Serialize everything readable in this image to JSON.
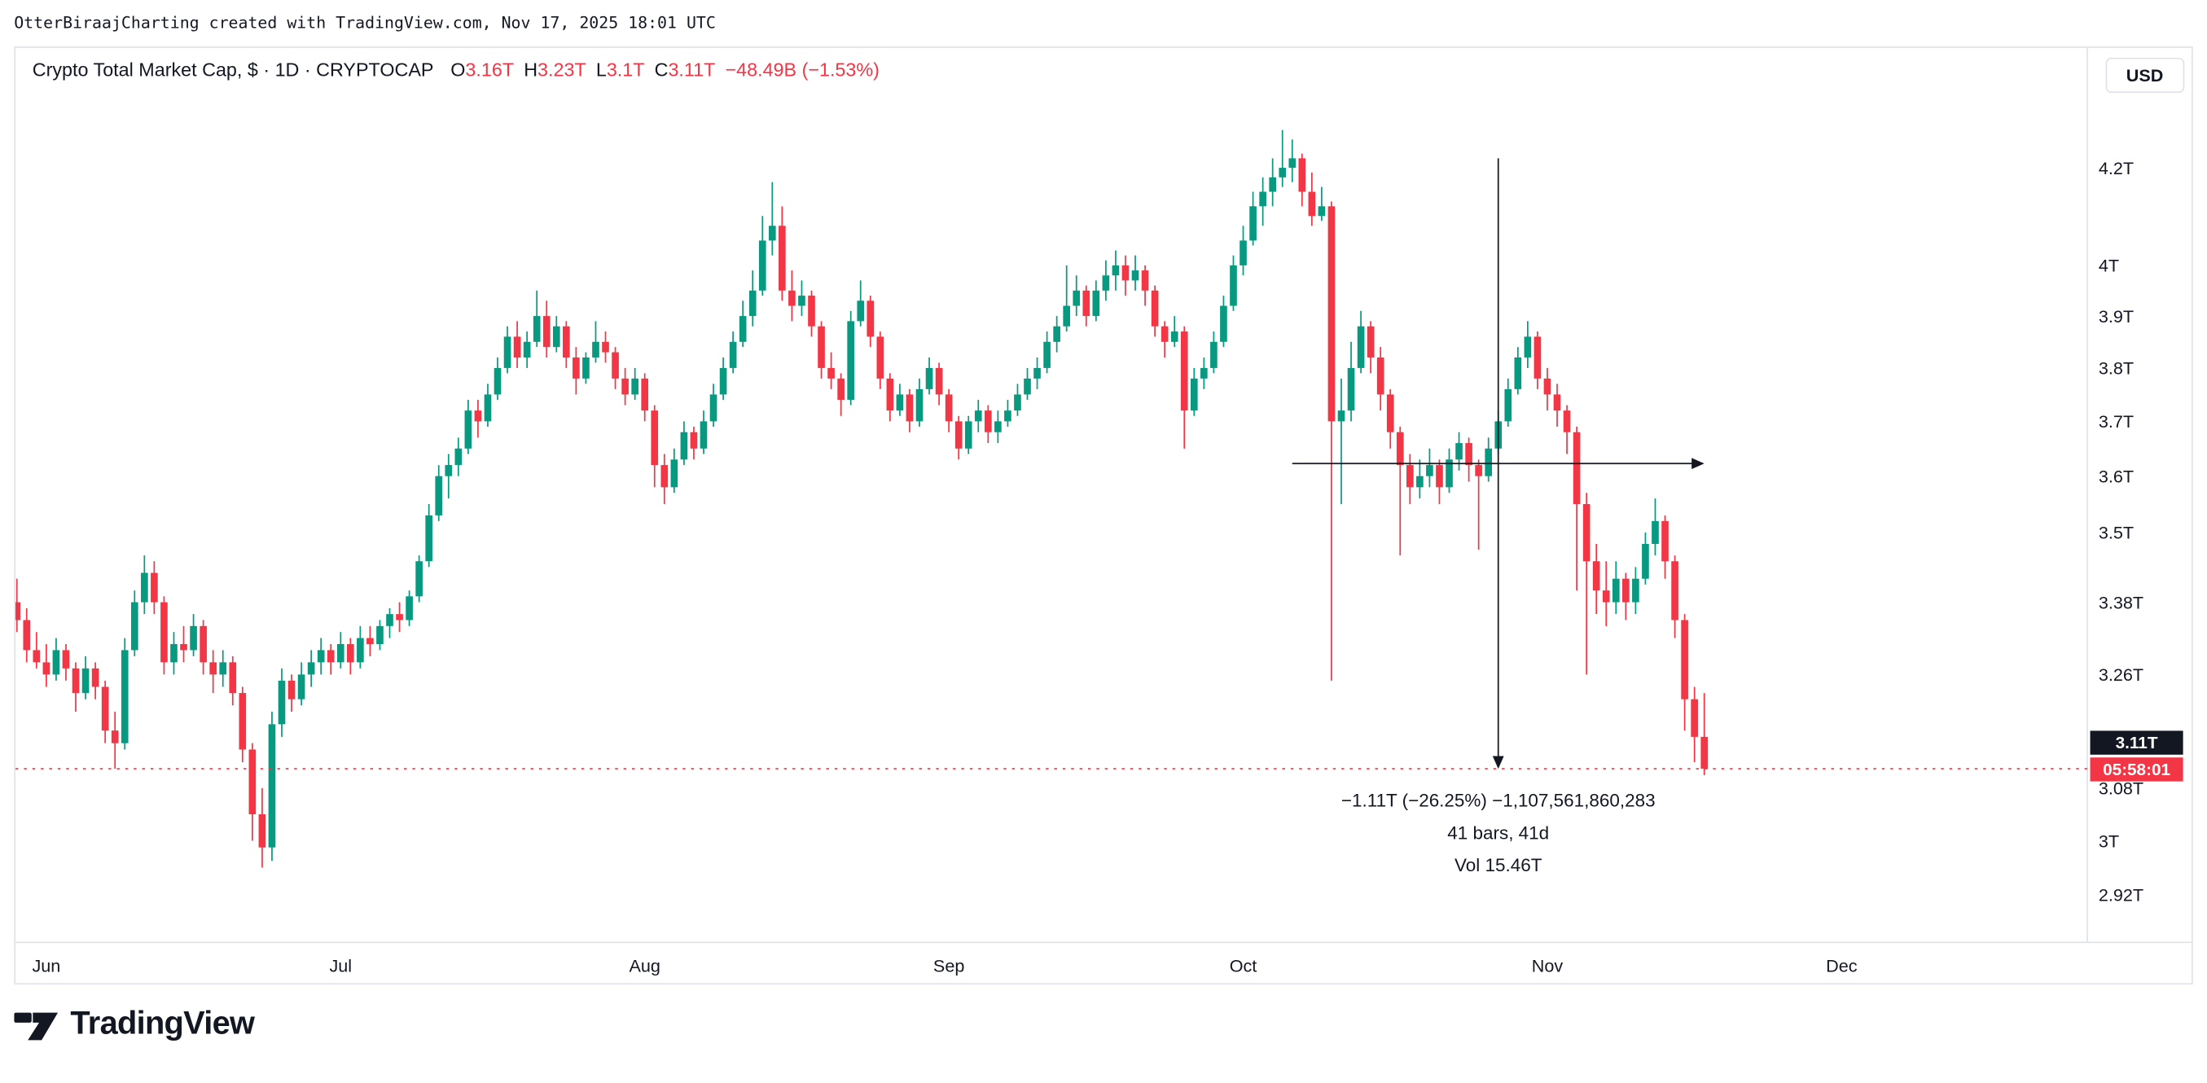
{
  "attribution": "OtterBiraajCharting created with TradingView.com, Nov 17, 2025 18:01 UTC",
  "header": {
    "title": "Crypto Total Market Cap, $ · 1D · CRYPTOCAP",
    "ohlc": [
      {
        "label": "O",
        "value": "3.16T"
      },
      {
        "label": "H",
        "value": "3.23T"
      },
      {
        "label": "L",
        "value": "3.1T"
      },
      {
        "label": "C",
        "value": "3.11T"
      }
    ],
    "change": "−48.49B (−1.53%)"
  },
  "currency_button": "USD",
  "logo_text": "TradingView",
  "colors": {
    "up": "#089981",
    "down": "#f23645",
    "text": "#131722",
    "red_text": "#f23645",
    "border": "#e0e3eb",
    "badge_bg": "#131722",
    "countdown_bg": "#f23645",
    "white": "#ffffff"
  },
  "chart_data": {
    "type": "candlestick",
    "title": "Crypto Total Market Cap, $ · 1D · CRYPTOCAP",
    "unit": "trillion USD",
    "interval": "1D",
    "start_date": "2025-05-29",
    "end_date": "2025-11-17",
    "last_price": 3.11,
    "last_price_label": "3.11T",
    "countdown": "05:58:01",
    "y_axis": {
      "scale": "log",
      "range_approx": [
        2.9,
        4.35
      ],
      "ticks": [
        {
          "label": "4.2T",
          "value": 4.2
        },
        {
          "label": "4T",
          "value": 4.0
        },
        {
          "label": "3.9T",
          "value": 3.9
        },
        {
          "label": "3.8T",
          "value": 3.8
        },
        {
          "label": "3.7T",
          "value": 3.7
        },
        {
          "label": "3.6T",
          "value": 3.6
        },
        {
          "label": "3.5T",
          "value": 3.5
        },
        {
          "label": "3.38T",
          "value": 3.38
        },
        {
          "label": "3.26T",
          "value": 3.26
        },
        {
          "label": "3.08T",
          "value": 3.08
        },
        {
          "label": "3T",
          "value": 3.0
        },
        {
          "label": "2.92T",
          "value": 2.92
        }
      ]
    },
    "x_axis": {
      "ticks": [
        {
          "label": "Jun",
          "bar": 3
        },
        {
          "label": "Jul",
          "bar": 33
        },
        {
          "label": "Aug",
          "bar": 64
        },
        {
          "label": "Sep",
          "bar": 95
        },
        {
          "label": "Oct",
          "bar": 125
        },
        {
          "label": "Nov",
          "bar": 156
        },
        {
          "label": "Dec",
          "bar": 186
        }
      ]
    },
    "measurement": {
      "from_bar": 130,
      "from_price": 4.22,
      "to_bar": 172,
      "to_price": 3.11,
      "lines": [
        "−1.11T (−26.25%) −1,107,561,860,283",
        "41 bars, 41d",
        "Vol 15.46T"
      ]
    },
    "ohlc": [
      [
        3.38,
        3.42,
        3.33,
        3.35
      ],
      [
        3.35,
        3.37,
        3.28,
        3.3
      ],
      [
        3.3,
        3.33,
        3.27,
        3.28
      ],
      [
        3.28,
        3.31,
        3.24,
        3.26
      ],
      [
        3.26,
        3.32,
        3.25,
        3.3
      ],
      [
        3.3,
        3.31,
        3.25,
        3.27
      ],
      [
        3.27,
        3.28,
        3.2,
        3.23
      ],
      [
        3.23,
        3.29,
        3.22,
        3.27
      ],
      [
        3.27,
        3.28,
        3.22,
        3.24
      ],
      [
        3.24,
        3.25,
        3.15,
        3.17
      ],
      [
        3.17,
        3.2,
        3.11,
        3.15
      ],
      [
        3.15,
        3.32,
        3.14,
        3.3
      ],
      [
        3.3,
        3.4,
        3.29,
        3.38
      ],
      [
        3.38,
        3.46,
        3.36,
        3.43
      ],
      [
        3.43,
        3.45,
        3.36,
        3.38
      ],
      [
        3.38,
        3.39,
        3.26,
        3.28
      ],
      [
        3.28,
        3.33,
        3.26,
        3.31
      ],
      [
        3.31,
        3.34,
        3.28,
        3.3
      ],
      [
        3.3,
        3.36,
        3.29,
        3.34
      ],
      [
        3.34,
        3.35,
        3.26,
        3.28
      ],
      [
        3.28,
        3.3,
        3.23,
        3.26
      ],
      [
        3.26,
        3.3,
        3.24,
        3.28
      ],
      [
        3.28,
        3.29,
        3.21,
        3.23
      ],
      [
        3.23,
        3.24,
        3.12,
        3.14
      ],
      [
        3.14,
        3.15,
        3.0,
        3.04
      ],
      [
        3.04,
        3.08,
        2.96,
        2.99
      ],
      [
        2.99,
        3.2,
        2.97,
        3.18
      ],
      [
        3.18,
        3.27,
        3.16,
        3.25
      ],
      [
        3.25,
        3.26,
        3.2,
        3.22
      ],
      [
        3.22,
        3.28,
        3.21,
        3.26
      ],
      [
        3.26,
        3.3,
        3.24,
        3.28
      ],
      [
        3.28,
        3.32,
        3.26,
        3.3
      ],
      [
        3.3,
        3.31,
        3.26,
        3.28
      ],
      [
        3.28,
        3.33,
        3.27,
        3.31
      ],
      [
        3.31,
        3.32,
        3.26,
        3.28
      ],
      [
        3.28,
        3.34,
        3.27,
        3.32
      ],
      [
        3.32,
        3.34,
        3.29,
        3.31
      ],
      [
        3.31,
        3.35,
        3.3,
        3.34
      ],
      [
        3.34,
        3.37,
        3.32,
        3.36
      ],
      [
        3.36,
        3.38,
        3.33,
        3.35
      ],
      [
        3.35,
        3.4,
        3.34,
        3.39
      ],
      [
        3.39,
        3.46,
        3.38,
        3.45
      ],
      [
        3.45,
        3.55,
        3.44,
        3.53
      ],
      [
        3.53,
        3.62,
        3.52,
        3.6
      ],
      [
        3.6,
        3.64,
        3.56,
        3.62
      ],
      [
        3.62,
        3.67,
        3.6,
        3.65
      ],
      [
        3.65,
        3.74,
        3.64,
        3.72
      ],
      [
        3.72,
        3.74,
        3.67,
        3.7
      ],
      [
        3.7,
        3.77,
        3.69,
        3.75
      ],
      [
        3.75,
        3.82,
        3.74,
        3.8
      ],
      [
        3.8,
        3.88,
        3.79,
        3.86
      ],
      [
        3.86,
        3.89,
        3.8,
        3.82
      ],
      [
        3.82,
        3.87,
        3.8,
        3.85
      ],
      [
        3.85,
        3.95,
        3.84,
        3.9
      ],
      [
        3.9,
        3.93,
        3.82,
        3.84
      ],
      [
        3.84,
        3.9,
        3.83,
        3.88
      ],
      [
        3.88,
        3.89,
        3.8,
        3.82
      ],
      [
        3.82,
        3.84,
        3.75,
        3.78
      ],
      [
        3.78,
        3.83,
        3.77,
        3.82
      ],
      [
        3.82,
        3.89,
        3.81,
        3.85
      ],
      [
        3.85,
        3.87,
        3.81,
        3.83
      ],
      [
        3.83,
        3.84,
        3.76,
        3.78
      ],
      [
        3.78,
        3.8,
        3.73,
        3.75
      ],
      [
        3.75,
        3.8,
        3.74,
        3.78
      ],
      [
        3.78,
        3.79,
        3.7,
        3.72
      ],
      [
        3.72,
        3.73,
        3.58,
        3.62
      ],
      [
        3.62,
        3.64,
        3.55,
        3.58
      ],
      [
        3.58,
        3.65,
        3.57,
        3.63
      ],
      [
        3.63,
        3.7,
        3.62,
        3.68
      ],
      [
        3.68,
        3.69,
        3.63,
        3.65
      ],
      [
        3.65,
        3.72,
        3.64,
        3.7
      ],
      [
        3.7,
        3.77,
        3.69,
        3.75
      ],
      [
        3.75,
        3.82,
        3.74,
        3.8
      ],
      [
        3.8,
        3.87,
        3.79,
        3.85
      ],
      [
        3.85,
        3.93,
        3.84,
        3.9
      ],
      [
        3.9,
        3.99,
        3.88,
        3.95
      ],
      [
        3.95,
        4.1,
        3.94,
        4.05
      ],
      [
        4.05,
        4.17,
        4.02,
        4.08
      ],
      [
        4.08,
        4.12,
        3.93,
        3.95
      ],
      [
        3.95,
        3.99,
        3.89,
        3.92
      ],
      [
        3.92,
        3.97,
        3.9,
        3.94
      ],
      [
        3.94,
        3.95,
        3.86,
        3.88
      ],
      [
        3.88,
        3.89,
        3.78,
        3.8
      ],
      [
        3.8,
        3.83,
        3.76,
        3.78
      ],
      [
        3.78,
        3.79,
        3.71,
        3.74
      ],
      [
        3.74,
        3.91,
        3.73,
        3.89
      ],
      [
        3.89,
        3.97,
        3.88,
        3.93
      ],
      [
        3.93,
        3.94,
        3.84,
        3.86
      ],
      [
        3.86,
        3.87,
        3.76,
        3.78
      ],
      [
        3.78,
        3.79,
        3.7,
        3.72
      ],
      [
        3.72,
        3.77,
        3.71,
        3.75
      ],
      [
        3.75,
        3.76,
        3.68,
        3.7
      ],
      [
        3.7,
        3.78,
        3.69,
        3.76
      ],
      [
        3.76,
        3.82,
        3.75,
        3.8
      ],
      [
        3.8,
        3.81,
        3.73,
        3.75
      ],
      [
        3.75,
        3.76,
        3.68,
        3.7
      ],
      [
        3.7,
        3.71,
        3.63,
        3.65
      ],
      [
        3.65,
        3.71,
        3.64,
        3.7
      ],
      [
        3.7,
        3.74,
        3.68,
        3.72
      ],
      [
        3.72,
        3.73,
        3.66,
        3.68
      ],
      [
        3.68,
        3.72,
        3.66,
        3.7
      ],
      [
        3.7,
        3.74,
        3.69,
        3.72
      ],
      [
        3.72,
        3.77,
        3.71,
        3.75
      ],
      [
        3.75,
        3.8,
        3.74,
        3.78
      ],
      [
        3.78,
        3.82,
        3.76,
        3.8
      ],
      [
        3.8,
        3.87,
        3.79,
        3.85
      ],
      [
        3.85,
        3.9,
        3.83,
        3.88
      ],
      [
        3.88,
        4.0,
        3.87,
        3.92
      ],
      [
        3.92,
        3.98,
        3.9,
        3.95
      ],
      [
        3.95,
        3.96,
        3.88,
        3.9
      ],
      [
        3.9,
        3.97,
        3.89,
        3.95
      ],
      [
        3.95,
        4.01,
        3.93,
        3.98
      ],
      [
        3.98,
        4.03,
        3.95,
        4.0
      ],
      [
        4.0,
        4.02,
        3.94,
        3.97
      ],
      [
        3.97,
        4.02,
        3.95,
        3.99
      ],
      [
        3.99,
        4.0,
        3.92,
        3.95
      ],
      [
        3.95,
        3.96,
        3.86,
        3.88
      ],
      [
        3.88,
        3.89,
        3.82,
        3.85
      ],
      [
        3.85,
        3.9,
        3.84,
        3.87
      ],
      [
        3.87,
        3.88,
        3.65,
        3.72
      ],
      [
        3.72,
        3.8,
        3.71,
        3.78
      ],
      [
        3.78,
        3.82,
        3.76,
        3.8
      ],
      [
        3.8,
        3.87,
        3.79,
        3.85
      ],
      [
        3.85,
        3.94,
        3.84,
        3.92
      ],
      [
        3.92,
        4.02,
        3.91,
        4.0
      ],
      [
        4.0,
        4.08,
        3.98,
        4.05
      ],
      [
        4.05,
        4.15,
        4.04,
        4.12
      ],
      [
        4.12,
        4.18,
        4.08,
        4.15
      ],
      [
        4.15,
        4.22,
        4.12,
        4.18
      ],
      [
        4.18,
        4.28,
        4.16,
        4.2
      ],
      [
        4.2,
        4.26,
        4.17,
        4.22
      ],
      [
        4.22,
        4.23,
        4.12,
        4.15
      ],
      [
        4.15,
        4.19,
        4.08,
        4.1
      ],
      [
        4.1,
        4.16,
        4.09,
        4.12
      ],
      [
        4.12,
        4.13,
        3.25,
        3.7
      ],
      [
        3.7,
        3.78,
        3.55,
        3.72
      ],
      [
        3.72,
        3.85,
        3.7,
        3.8
      ],
      [
        3.8,
        3.91,
        3.79,
        3.88
      ],
      [
        3.88,
        3.89,
        3.79,
        3.82
      ],
      [
        3.82,
        3.84,
        3.72,
        3.75
      ],
      [
        3.75,
        3.76,
        3.65,
        3.68
      ],
      [
        3.68,
        3.69,
        3.46,
        3.62
      ],
      [
        3.62,
        3.64,
        3.55,
        3.58
      ],
      [
        3.58,
        3.63,
        3.56,
        3.6
      ],
      [
        3.6,
        3.65,
        3.58,
        3.62
      ],
      [
        3.62,
        3.63,
        3.55,
        3.58
      ],
      [
        3.58,
        3.65,
        3.57,
        3.63
      ],
      [
        3.63,
        3.68,
        3.61,
        3.66
      ],
      [
        3.66,
        3.67,
        3.59,
        3.62
      ],
      [
        3.62,
        3.63,
        3.47,
        3.6
      ],
      [
        3.6,
        3.67,
        3.59,
        3.65
      ],
      [
        3.65,
        3.72,
        3.64,
        3.7
      ],
      [
        3.7,
        3.78,
        3.69,
        3.76
      ],
      [
        3.76,
        3.84,
        3.75,
        3.82
      ],
      [
        3.82,
        3.89,
        3.8,
        3.86
      ],
      [
        3.86,
        3.87,
        3.76,
        3.78
      ],
      [
        3.78,
        3.8,
        3.72,
        3.75
      ],
      [
        3.75,
        3.77,
        3.69,
        3.72
      ],
      [
        3.72,
        3.73,
        3.64,
        3.68
      ],
      [
        3.68,
        3.69,
        3.4,
        3.55
      ],
      [
        3.55,
        3.57,
        3.26,
        3.45
      ],
      [
        3.45,
        3.48,
        3.36,
        3.4
      ],
      [
        3.4,
        3.45,
        3.34,
        3.38
      ],
      [
        3.38,
        3.45,
        3.36,
        3.42
      ],
      [
        3.42,
        3.43,
        3.35,
        3.38
      ],
      [
        3.38,
        3.44,
        3.36,
        3.42
      ],
      [
        3.42,
        3.5,
        3.41,
        3.48
      ],
      [
        3.48,
        3.56,
        3.46,
        3.52
      ],
      [
        3.52,
        3.53,
        3.42,
        3.45
      ],
      [
        3.45,
        3.46,
        3.32,
        3.35
      ],
      [
        3.35,
        3.36,
        3.17,
        3.22
      ],
      [
        3.22,
        3.24,
        3.12,
        3.16
      ],
      [
        3.16,
        3.23,
        3.1,
        3.11
      ]
    ]
  }
}
